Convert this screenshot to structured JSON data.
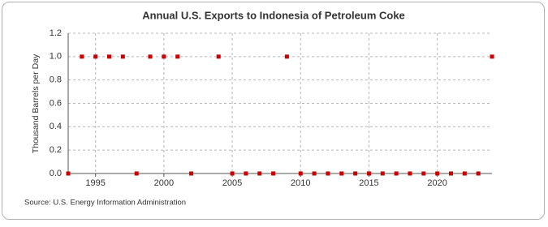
{
  "chart_data": {
    "type": "scatter",
    "title": "Annual U.S. Exports to Indonesia of Petroleum Coke",
    "y_label": "Thousand Barrels per Day",
    "source": "Source: U.S. Energy Information Administration",
    "x": [
      1993,
      1994,
      1995,
      1996,
      1997,
      1998,
      1999,
      2000,
      2001,
      2002,
      2004,
      2005,
      2006,
      2007,
      2008,
      2009,
      2010,
      2011,
      2012,
      2013,
      2014,
      2015,
      2016,
      2017,
      2018,
      2019,
      2020,
      2021,
      2022,
      2023,
      2024
    ],
    "values": [
      0,
      1,
      1,
      1,
      1,
      0,
      1,
      1,
      1,
      0,
      1,
      0,
      0,
      0,
      0,
      1,
      0,
      0,
      0,
      0,
      0,
      0,
      0,
      0,
      0,
      0,
      0,
      0,
      0,
      0,
      1
    ],
    "color": "#cc0000",
    "xlim": [
      1993,
      2024
    ],
    "xticks": [
      1995,
      2000,
      2005,
      2010,
      2015,
      2020
    ],
    "ylim": [
      0,
      1.2
    ],
    "yticks": [
      {
        "value": 0,
        "label": "0.0"
      },
      0.2,
      0.4,
      0.6,
      0.8,
      {
        "value": 1,
        "label": "1.0"
      },
      1.2
    ],
    "grid": true
  }
}
